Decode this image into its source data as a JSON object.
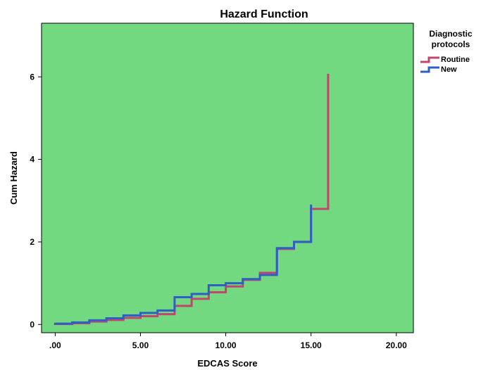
{
  "chart_data": {
    "type": "line",
    "step": true,
    "title": "Hazard Function",
    "xlabel": "EDCAS Score",
    "ylabel": "Cum Hazard",
    "xlim": [
      -0.8,
      21.0
    ],
    "ylim": [
      -0.2,
      7.3
    ],
    "x_ticks": [
      0,
      5,
      10,
      15,
      20
    ],
    "x_tick_labels": [
      ".00",
      "5.00",
      "10.00",
      "15.00",
      "20.00"
    ],
    "y_ticks": [
      0,
      2,
      4,
      6
    ],
    "y_tick_labels": [
      "0",
      "2",
      "4",
      "6"
    ],
    "grid": false,
    "background_color": "#72d981",
    "legend": {
      "title": "Diagnostic protocols",
      "title_lines": [
        "Diagnostic",
        "protocols"
      ],
      "position": "right"
    },
    "series": [
      {
        "name": "Routine",
        "color": "#c2456e",
        "x": [
          0,
          1,
          2,
          3,
          4,
          5,
          6,
          7,
          8,
          9,
          10,
          11,
          12,
          13,
          14,
          15,
          16,
          16
        ],
        "y": [
          0.01,
          0.03,
          0.07,
          0.11,
          0.16,
          0.2,
          0.25,
          0.45,
          0.62,
          0.78,
          0.92,
          1.08,
          1.25,
          1.83,
          2.0,
          2.8,
          2.8,
          6.05
        ]
      },
      {
        "name": "New",
        "color": "#2e5fc4",
        "x": [
          0,
          1,
          2,
          3,
          4,
          5,
          6,
          7,
          8,
          9,
          10,
          11,
          12,
          13,
          14,
          15
        ],
        "y": [
          0.02,
          0.05,
          0.1,
          0.15,
          0.22,
          0.28,
          0.34,
          0.66,
          0.74,
          0.95,
          1.0,
          1.1,
          1.2,
          1.85,
          2.0,
          2.88
        ]
      }
    ]
  }
}
